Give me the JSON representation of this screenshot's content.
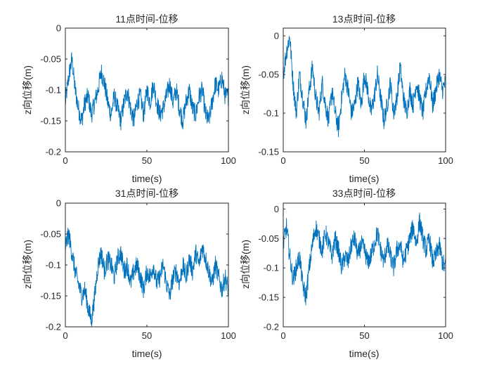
{
  "colors": {
    "line": "#0072BD",
    "axis": "#262626",
    "background": "#ffffff"
  },
  "chart_data": [
    {
      "type": "line",
      "title": "11点时间-位移",
      "xlabel": "time(s)",
      "ylabel": "z向位移(m)",
      "xlim": [
        0,
        100
      ],
      "ylim": [
        -0.2,
        0
      ],
      "xticks": [
        0,
        50,
        100
      ],
      "xtick_labels": [
        "0",
        "50",
        "100"
      ],
      "yticks": [
        0,
        -0.05,
        -0.1,
        -0.15,
        -0.2
      ],
      "ytick_labels": [
        "0",
        "-0.05",
        "-0.1",
        "-0.15",
        "-0.2"
      ],
      "grid": false,
      "series": [
        {
          "x": [
            0,
            2,
            4,
            6,
            8,
            10,
            12,
            14,
            16,
            18,
            20,
            22,
            24,
            26,
            28,
            30,
            32,
            34,
            36,
            38,
            40,
            42,
            44,
            46,
            48,
            50,
            52,
            54,
            56,
            58,
            60,
            62,
            64,
            66,
            68,
            70,
            72,
            74,
            76,
            78,
            80,
            82,
            84,
            86,
            88,
            90,
            92,
            94,
            96,
            98,
            100
          ],
          "values": [
            -0.12,
            -0.08,
            -0.05,
            -0.1,
            -0.13,
            -0.15,
            -0.12,
            -0.11,
            -0.14,
            -0.12,
            -0.1,
            -0.07,
            -0.09,
            -0.12,
            -0.14,
            -0.11,
            -0.13,
            -0.15,
            -0.12,
            -0.1,
            -0.13,
            -0.15,
            -0.12,
            -0.11,
            -0.14,
            -0.1,
            -0.12,
            -0.09,
            -0.12,
            -0.14,
            -0.13,
            -0.11,
            -0.09,
            -0.12,
            -0.1,
            -0.13,
            -0.15,
            -0.12,
            -0.1,
            -0.13,
            -0.14,
            -0.11,
            -0.1,
            -0.14,
            -0.15,
            -0.12,
            -0.09,
            -0.1,
            -0.08,
            -0.11,
            -0.11
          ]
        }
      ]
    },
    {
      "type": "line",
      "title": "13点时间-位移",
      "xlabel": "time(s)",
      "ylabel": "z向位移(m)",
      "xlim": [
        0,
        100
      ],
      "ylim": [
        -0.15,
        0.01
      ],
      "xticks": [
        0,
        50,
        100
      ],
      "xtick_labels": [
        "0",
        "50",
        "100"
      ],
      "yticks": [
        0,
        -0.05,
        -0.1,
        -0.15
      ],
      "ytick_labels": [
        "0",
        "-0.05",
        "-0.1",
        "-0.15"
      ],
      "grid": false,
      "series": [
        {
          "x": [
            0,
            2,
            4,
            6,
            8,
            10,
            12,
            14,
            16,
            18,
            20,
            22,
            24,
            26,
            28,
            30,
            32,
            34,
            36,
            38,
            40,
            42,
            44,
            46,
            48,
            50,
            52,
            54,
            56,
            58,
            60,
            62,
            64,
            66,
            68,
            70,
            72,
            74,
            76,
            78,
            80,
            82,
            84,
            86,
            88,
            90,
            92,
            94,
            96,
            98,
            100
          ],
          "values": [
            -0.05,
            -0.02,
            0.0,
            -0.06,
            -0.1,
            -0.05,
            -0.08,
            -0.11,
            -0.07,
            -0.04,
            -0.08,
            -0.1,
            -0.06,
            -0.09,
            -0.11,
            -0.07,
            -0.1,
            -0.12,
            -0.08,
            -0.05,
            -0.07,
            -0.1,
            -0.09,
            -0.06,
            -0.09,
            -0.05,
            -0.07,
            -0.1,
            -0.08,
            -0.05,
            -0.08,
            -0.11,
            -0.09,
            -0.06,
            -0.1,
            -0.08,
            -0.04,
            -0.08,
            -0.1,
            -0.07,
            -0.09,
            -0.06,
            -0.08,
            -0.1,
            -0.07,
            -0.05,
            -0.09,
            -0.07,
            -0.05,
            -0.07,
            -0.06
          ]
        }
      ]
    },
    {
      "type": "line",
      "title": "31点时间-位移",
      "xlabel": "time(s)",
      "ylabel": "z向位移(m)",
      "xlim": [
        0,
        100
      ],
      "ylim": [
        -0.2,
        0
      ],
      "xticks": [
        0,
        50,
        100
      ],
      "xtick_labels": [
        "0",
        "50",
        "100"
      ],
      "yticks": [
        0,
        -0.05,
        -0.1,
        -0.15,
        -0.2
      ],
      "ytick_labels": [
        "0",
        "-0.05",
        "-0.1",
        "-0.15",
        "-0.2"
      ],
      "grid": false,
      "series": [
        {
          "x": [
            0,
            2,
            4,
            6,
            8,
            10,
            12,
            14,
            16,
            18,
            20,
            22,
            24,
            26,
            28,
            30,
            32,
            34,
            36,
            38,
            40,
            42,
            44,
            46,
            48,
            50,
            52,
            54,
            56,
            58,
            60,
            62,
            64,
            66,
            68,
            70,
            72,
            74,
            76,
            78,
            80,
            82,
            84,
            86,
            88,
            90,
            92,
            94,
            96,
            98,
            100
          ],
          "values": [
            -0.07,
            -0.05,
            -0.08,
            -0.11,
            -0.13,
            -0.15,
            -0.14,
            -0.17,
            -0.19,
            -0.15,
            -0.1,
            -0.08,
            -0.11,
            -0.09,
            -0.1,
            -0.12,
            -0.09,
            -0.08,
            -0.11,
            -0.1,
            -0.13,
            -0.11,
            -0.1,
            -0.12,
            -0.14,
            -0.11,
            -0.12,
            -0.1,
            -0.13,
            -0.12,
            -0.1,
            -0.13,
            -0.15,
            -0.12,
            -0.11,
            -0.13,
            -0.1,
            -0.12,
            -0.09,
            -0.11,
            -0.08,
            -0.1,
            -0.07,
            -0.09,
            -0.11,
            -0.13,
            -0.1,
            -0.12,
            -0.14,
            -0.12,
            -0.14
          ]
        }
      ]
    },
    {
      "type": "line",
      "title": "33点时间-位移",
      "xlabel": "time(s)",
      "ylabel": "z向位移(m)",
      "xlim": [
        0,
        100
      ],
      "ylim": [
        -0.2,
        0.01
      ],
      "xticks": [
        0,
        50,
        100
      ],
      "xtick_labels": [
        "0",
        "50",
        "100"
      ],
      "yticks": [
        0,
        -0.05,
        -0.1,
        -0.15,
        -0.2
      ],
      "ytick_labels": [
        "0",
        "-0.05",
        "-0.1",
        "-0.15",
        "-0.2"
      ],
      "grid": false,
      "series": [
        {
          "x": [
            0,
            2,
            4,
            6,
            8,
            10,
            12,
            14,
            16,
            18,
            20,
            22,
            24,
            26,
            28,
            30,
            32,
            34,
            36,
            38,
            40,
            42,
            44,
            46,
            48,
            50,
            52,
            54,
            56,
            58,
            60,
            62,
            64,
            66,
            68,
            70,
            72,
            74,
            76,
            78,
            80,
            82,
            84,
            86,
            88,
            90,
            92,
            94,
            96,
            98,
            100
          ],
          "values": [
            -0.06,
            -0.03,
            -0.08,
            -0.12,
            -0.1,
            -0.08,
            -0.13,
            -0.15,
            -0.1,
            -0.06,
            -0.03,
            -0.05,
            -0.07,
            -0.04,
            -0.06,
            -0.08,
            -0.05,
            -0.07,
            -0.1,
            -0.08,
            -0.09,
            -0.06,
            -0.05,
            -0.08,
            -0.06,
            -0.07,
            -0.09,
            -0.08,
            -0.06,
            -0.04,
            -0.07,
            -0.09,
            -0.06,
            -0.08,
            -0.1,
            -0.07,
            -0.06,
            -0.09,
            -0.07,
            -0.05,
            -0.03,
            -0.06,
            -0.02,
            -0.05,
            -0.07,
            -0.05,
            -0.09,
            -0.08,
            -0.06,
            -0.09,
            -0.1
          ]
        }
      ]
    }
  ]
}
